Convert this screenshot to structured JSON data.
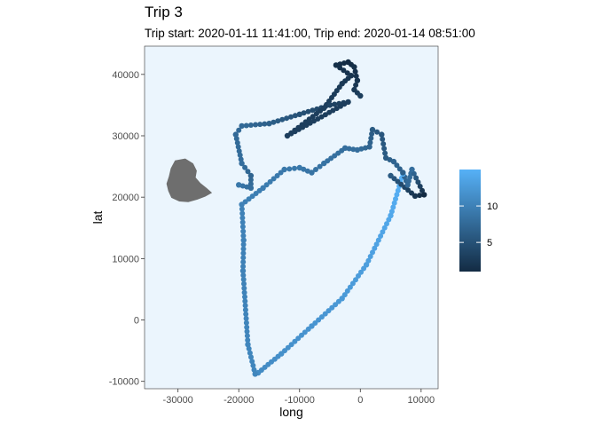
{
  "chart_data": {
    "type": "scatter",
    "title": "Trip 3",
    "subtitle": "Trip start: 2020-01-11 11:41:00, Trip end: 2020-01-14 08:51:00",
    "xlabel": "long",
    "ylabel": "lat",
    "xlim": [
      -35500,
      12800
    ],
    "ylim": [
      -11200,
      44600
    ],
    "x_ticks": [
      -30000,
      -20000,
      -10000,
      0,
      10000
    ],
    "x_tick_labels": [
      "-30000",
      "-20000",
      "-10000",
      "0",
      "10000"
    ],
    "y_ticks": [
      -10000,
      0,
      10000,
      20000,
      30000,
      40000
    ],
    "y_tick_labels": [
      "-10000",
      "0",
      "10000",
      "20000",
      "30000",
      "40000"
    ],
    "panel_background": "#ebf5fd",
    "grid": false,
    "colorbar": {
      "position": "right",
      "min": 1,
      "max": 15,
      "ticks": [
        5,
        10
      ],
      "tick_labels": [
        "5",
        "10"
      ],
      "color_low": "#132b43",
      "color_high": "#56b1f7"
    },
    "land_color": "#6e6e6e",
    "land_outline": [
      [
        -30500,
        26000
      ],
      [
        -28800,
        26300
      ],
      [
        -27500,
        25500
      ],
      [
        -26900,
        24300
      ],
      [
        -27100,
        23200
      ],
      [
        -26300,
        22300
      ],
      [
        -25300,
        21500
      ],
      [
        -24400,
        20700
      ],
      [
        -25500,
        20100
      ],
      [
        -26800,
        19600
      ],
      [
        -28300,
        19200
      ],
      [
        -29800,
        19300
      ],
      [
        -31100,
        19900
      ],
      [
        -31600,
        21000
      ],
      [
        -31900,
        22200
      ],
      [
        -31500,
        23400
      ],
      [
        -31200,
        24700
      ]
    ],
    "points": [
      {
        "x": 7000,
        "y": 23800,
        "c": 15
      },
      {
        "x": 5000,
        "y": 17000,
        "c": 14
      },
      {
        "x": 1000,
        "y": 9000,
        "c": 13
      },
      {
        "x": -3000,
        "y": 3500,
        "c": 12.5
      },
      {
        "x": -8000,
        "y": -1000,
        "c": 12
      },
      {
        "x": -13000,
        "y": -5500,
        "c": 11.5
      },
      {
        "x": -16800,
        "y": -8600,
        "c": 11
      },
      {
        "x": -17300,
        "y": -8800,
        "c": 10.5
      },
      {
        "x": -18500,
        "y": -4000,
        "c": 10.5
      },
      {
        "x": -19300,
        "y": 8000,
        "c": 10
      },
      {
        "x": -19200,
        "y": 13000,
        "c": 10
      },
      {
        "x": -19500,
        "y": 18800,
        "c": 10
      },
      {
        "x": -16000,
        "y": 21500,
        "c": 9.5
      },
      {
        "x": -12500,
        "y": 24500,
        "c": 9
      },
      {
        "x": -10000,
        "y": 24800,
        "c": 9
      },
      {
        "x": -8000,
        "y": 24000,
        "c": 8.5
      },
      {
        "x": -6000,
        "y": 25500,
        "c": 8.5
      },
      {
        "x": -2500,
        "y": 28000,
        "c": 8
      },
      {
        "x": -500,
        "y": 27700,
        "c": 8
      },
      {
        "x": 1500,
        "y": 28200,
        "c": 7
      },
      {
        "x": 2000,
        "y": 31000,
        "c": 6
      },
      {
        "x": 3500,
        "y": 30200,
        "c": 5.5
      },
      {
        "x": 4200,
        "y": 26400,
        "c": 6
      },
      {
        "x": 5500,
        "y": 25800,
        "c": 7
      },
      {
        "x": 7000,
        "y": 24000,
        "c": 6.5
      },
      {
        "x": 7800,
        "y": 22000,
        "c": 7.5
      },
      {
        "x": 8500,
        "y": 24500,
        "c": 8
      },
      {
        "x": 10500,
        "y": 20400,
        "c": 1
      },
      {
        "x": 9000,
        "y": 20200,
        "c": 2
      },
      {
        "x": 5000,
        "y": 23500,
        "c": 6
      },
      {
        "x": -20000,
        "y": 22000,
        "c": 9
      },
      {
        "x": -18000,
        "y": 21500,
        "c": 8
      },
      {
        "x": -18000,
        "y": 23500,
        "c": 7
      },
      {
        "x": -19500,
        "y": 25500,
        "c": 8
      },
      {
        "x": -20500,
        "y": 30200,
        "c": 7.5
      },
      {
        "x": -19500,
        "y": 31600,
        "c": 7.5
      },
      {
        "x": -15000,
        "y": 32000,
        "c": 6.5
      },
      {
        "x": -10000,
        "y": 33500,
        "c": 5
      },
      {
        "x": -5000,
        "y": 35000,
        "c": 3.5
      },
      {
        "x": -2000,
        "y": 35500,
        "c": 3
      },
      {
        "x": -12000,
        "y": 30000,
        "c": 3
      },
      {
        "x": -6000,
        "y": 34500,
        "c": 3
      },
      {
        "x": -3000,
        "y": 38500,
        "c": 2.5
      },
      {
        "x": -1500,
        "y": 39800,
        "c": 2
      },
      {
        "x": -4000,
        "y": 41500,
        "c": 1.5
      },
      {
        "x": -2000,
        "y": 42000,
        "c": 1
      },
      {
        "x": -1000,
        "y": 41200,
        "c": 1.5
      },
      {
        "x": -500,
        "y": 39000,
        "c": 2
      },
      {
        "x": -1000,
        "y": 37500,
        "c": 2.5
      },
      {
        "x": 0,
        "y": 36500,
        "c": 3
      }
    ]
  }
}
